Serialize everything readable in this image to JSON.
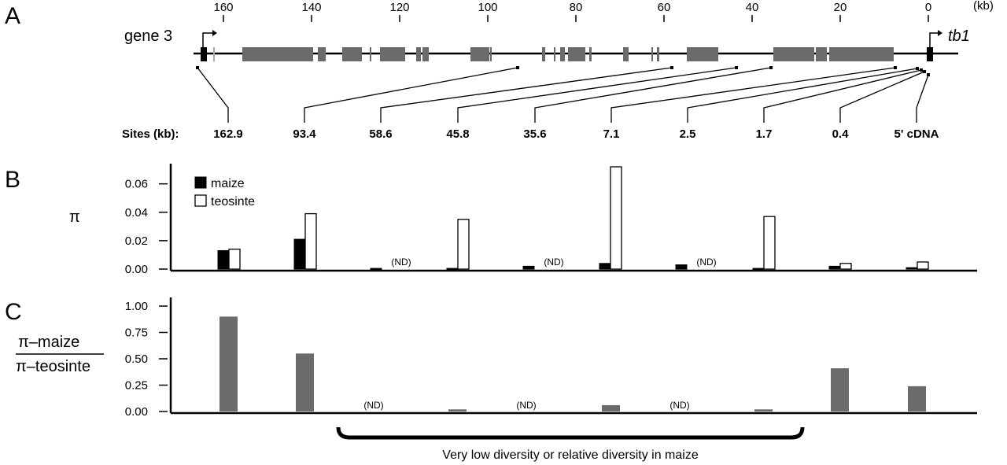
{
  "panels": {
    "a": "A",
    "b": "B",
    "c": "C"
  },
  "genes": {
    "left": "gene 3",
    "right": "tb1"
  },
  "scale": {
    "unit": "(kb)",
    "ticks": [
      160,
      140,
      120,
      100,
      80,
      60,
      40,
      20,
      0
    ]
  },
  "sites": {
    "label": "Sites (kb):",
    "items": [
      "162.9",
      "93.4",
      "58.6",
      "45.8",
      "35.6",
      "7.1",
      "2.5",
      "1.7",
      "0.4",
      "5' cDNA"
    ]
  },
  "legend": {
    "maize": "maize",
    "teosinte": "teosinte"
  },
  "colors": {
    "maize": "#000000",
    "teosinte": "#ffffff",
    "ratio": "#6b6b6b",
    "exon": "#6b6b6b"
  },
  "nd_label": "(ND)",
  "bracket_label": "Very low diversity or relative diversity in maize",
  "chart_data": [
    {
      "type": "bar",
      "ylabel": "π",
      "yticks": [
        "0.00",
        "0.02",
        "0.04",
        "0.06"
      ],
      "ylim": [
        0,
        0.072
      ],
      "categories": [
        "162.9",
        "93.4",
        "58.6",
        "45.8",
        "35.6",
        "7.1",
        "2.5",
        "1.7",
        "0.4",
        "5' cDNA"
      ],
      "series": [
        {
          "name": "maize",
          "values": [
            0.013,
            0.021,
            0.0005,
            0.0005,
            0.002,
            0.004,
            0.003,
            0.0005,
            0.002,
            0.001
          ]
        },
        {
          "name": "teosinte",
          "values": [
            0.014,
            0.039,
            null,
            0.035,
            null,
            0.072,
            null,
            0.037,
            0.004,
            0.005
          ]
        }
      ]
    },
    {
      "type": "bar",
      "ylabel_top": "π–maize",
      "ylabel_bottom": "π–teosinte",
      "yticks": [
        "0.00",
        "0.25",
        "0.50",
        "0.75",
        "1.00"
      ],
      "ylim": [
        0,
        1.0
      ],
      "categories": [
        "162.9",
        "93.4",
        "58.6",
        "45.8",
        "35.6",
        "7.1",
        "2.5",
        "1.7",
        "0.4",
        "5' cDNA"
      ],
      "values": [
        0.9,
        0.55,
        null,
        0.02,
        null,
        0.06,
        null,
        0.02,
        0.41,
        0.24
      ]
    }
  ]
}
